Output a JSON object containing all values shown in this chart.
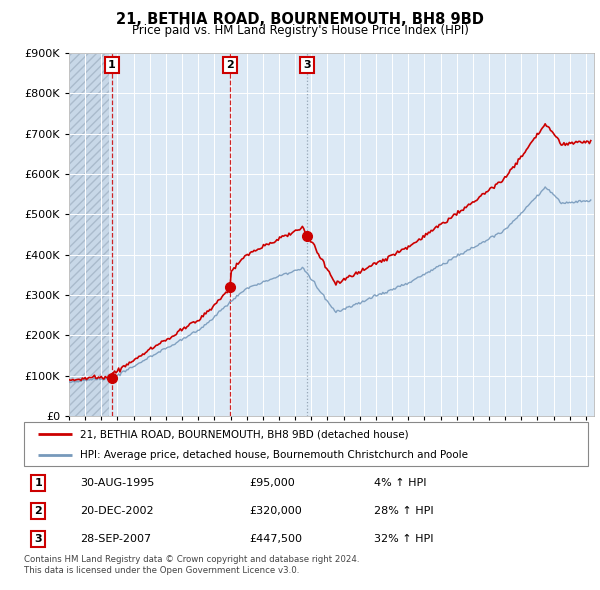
{
  "title": "21, BETHIA ROAD, BOURNEMOUTH, BH8 9BD",
  "subtitle": "Price paid vs. HM Land Registry's House Price Index (HPI)",
  "sales": [
    {
      "num": 1,
      "date": "30-AUG-1995",
      "year": 1995.66,
      "price": 95000,
      "pct": "4%",
      "vline_color": "#cc0000"
    },
    {
      "num": 2,
      "date": "20-DEC-2002",
      "year": 2002.97,
      "price": 320000,
      "pct": "28%",
      "vline_color": "#cc0000"
    },
    {
      "num": 3,
      "date": "28-SEP-2007",
      "year": 2007.74,
      "price": 447500,
      "pct": "32%",
      "vline_color": "#8899aa"
    }
  ],
  "legend_line1": "21, BETHIA ROAD, BOURNEMOUTH, BH8 9BD (detached house)",
  "legend_line2": "HPI: Average price, detached house, Bournemouth Christchurch and Poole",
  "footer1": "Contains HM Land Registry data © Crown copyright and database right 2024.",
  "footer2": "This data is licensed under the Open Government Licence v3.0.",
  "property_color": "#cc0000",
  "hpi_color": "#7799bb",
  "plot_bg_color": "#dce9f5",
  "grid_color": "#ffffff",
  "ylim": [
    0,
    900000
  ],
  "yticks": [
    0,
    100000,
    200000,
    300000,
    400000,
    500000,
    600000,
    700000,
    800000,
    900000
  ],
  "xlim_start": 1993.0,
  "xlim_end": 2025.5,
  "hatch_end": 1995.5,
  "sale_entries": [
    {
      "num": 1,
      "date": "30-AUG-1995",
      "price": "£95,000",
      "pct": "4% ↑ HPI"
    },
    {
      "num": 2,
      "date": "20-DEC-2002",
      "price": "£320,000",
      "pct": "28% ↑ HPI"
    },
    {
      "num": 3,
      "date": "28-SEP-2007",
      "price": "£447,500",
      "pct": "32% ↑ HPI"
    }
  ]
}
